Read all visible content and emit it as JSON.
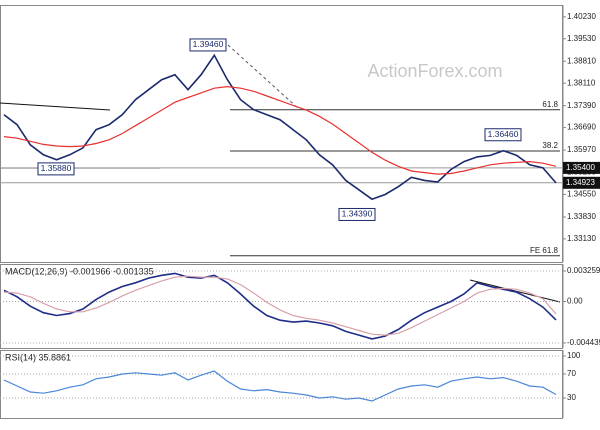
{
  "chart_data": [
    {
      "type": "line",
      "watermark": "ActionForex.com",
      "series": [
        {
          "color": "#1a2a6c",
          "values": [
            1.371,
            1.3678,
            1.3614,
            1.3582,
            1.3566,
            1.3582,
            1.3604,
            1.3662,
            1.3678,
            1.371,
            1.3758,
            1.379,
            1.3822,
            1.3838,
            1.379,
            1.3838,
            1.39,
            1.3822,
            1.3758,
            1.3726,
            1.371,
            1.3694,
            1.3662,
            1.363,
            1.3582,
            1.355,
            1.35,
            1.347,
            1.344,
            1.3455,
            1.348,
            1.351,
            1.35,
            1.3495,
            1.3535,
            1.356,
            1.3575,
            1.358,
            1.3595,
            1.358,
            1.355,
            1.354,
            1.3492
          ]
        },
        {
          "color": "#e8312f",
          "values": [
            1.364,
            1.3635,
            1.3625,
            1.3615,
            1.361,
            1.3608,
            1.361,
            1.3618,
            1.363,
            1.365,
            1.3675,
            1.37,
            1.3725,
            1.375,
            1.3765,
            1.378,
            1.3795,
            1.38,
            1.3795,
            1.3785,
            1.377,
            1.3755,
            1.374,
            1.3725,
            1.3705,
            1.368,
            1.365,
            1.362,
            1.359,
            1.3565,
            1.3545,
            1.353,
            1.3525,
            1.352,
            1.3522,
            1.353,
            1.354,
            1.355,
            1.3555,
            1.3558,
            1.356,
            1.3555,
            1.3545
          ]
        }
      ],
      "ylim": [
        1.3239,
        1.4061
      ],
      "yticks": [
        {
          "value": 1.4023,
          "label": "1.40230"
        },
        {
          "value": 1.3953,
          "label": "1.39530"
        },
        {
          "value": 1.3881,
          "label": "1.38810"
        },
        {
          "value": 1.3811,
          "label": "1.38110"
        },
        {
          "value": 1.3739,
          "label": "1.37390"
        },
        {
          "value": 1.3669,
          "label": "1.36690"
        },
        {
          "value": 1.3597,
          "label": "1.35970"
        },
        {
          "value": 1.3525,
          "label": "1.35250"
        },
        {
          "value": 1.3455,
          "label": "1.34550"
        },
        {
          "value": 1.3383,
          "label": "1.33830"
        },
        {
          "value": 1.3313,
          "label": "1.33130"
        }
      ],
      "price_tags": [
        {
          "value": 1.354,
          "label": "1.35400"
        },
        {
          "value": 1.34923,
          "label": "1.34923"
        }
      ],
      "levels": [
        {
          "value": 1.3726,
          "label": "61.8"
        },
        {
          "value": 1.3594,
          "label": "38.2"
        },
        {
          "value": 1.3259,
          "label": "FE 61.8"
        }
      ],
      "annotations": [
        {
          "value": 1.3946,
          "label": "1.39460"
        },
        {
          "value": 1.3588,
          "label": "1.35880"
        },
        {
          "value": 1.3646,
          "label": "1.36460"
        },
        {
          "value": 1.3439,
          "label": "1.34390"
        }
      ],
      "grid": false
    },
    {
      "type": "line",
      "title": "MACD(12,26,9) -0.001966 -0.001335",
      "series": [
        {
          "color": "#1f2d8a",
          "values": [
            0.0012,
            0.0005,
            -0.0005,
            -0.0012,
            -0.0015,
            -0.0013,
            -0.0008,
            0.0002,
            0.001,
            0.0016,
            0.002,
            0.0025,
            0.0028,
            0.003,
            0.0026,
            0.0025,
            0.0028,
            0.002,
            0.0008,
            -0.0005,
            -0.0015,
            -0.002,
            -0.0022,
            -0.0021,
            -0.0023,
            -0.0026,
            -0.0032,
            -0.0036,
            -0.004,
            -0.0037,
            -0.003,
            -0.002,
            -0.0012,
            -0.0006,
            0.0,
            0.0008,
            0.002,
            0.0016,
            0.0013,
            0.001,
            0.0003,
            -0.0006,
            -0.001966
          ]
        },
        {
          "color": "#d9a0a8",
          "values": [
            0.001,
            0.0009,
            0.0005,
            -0.0002,
            -0.0008,
            -0.0011,
            -0.0011,
            -0.0007,
            -0.0001,
            0.0006,
            0.0012,
            0.0017,
            0.0022,
            0.0026,
            0.0027,
            0.0026,
            0.0026,
            0.0024,
            0.0018,
            0.0009,
            -0.0001,
            -0.0009,
            -0.0015,
            -0.0018,
            -0.002,
            -0.0023,
            -0.0027,
            -0.0031,
            -0.0035,
            -0.0036,
            -0.0034,
            -0.0028,
            -0.0021,
            -0.0014,
            -0.0007,
            0.0,
            0.0009,
            0.0013,
            0.0014,
            0.0013,
            0.0009,
            0.0003,
            -0.001335
          ]
        }
      ],
      "ylim": [
        -0.004974,
        0.004007
      ],
      "yticks": [
        0.003259,
        {
          "value": 0,
          "label": "0.00"
        },
        -0.004439
      ],
      "grid": true
    },
    {
      "type": "line",
      "title": "RSI(14) 35.8861",
      "series": [
        {
          "color": "#4a86d8",
          "values": [
            60,
            50,
            40,
            38,
            42,
            48,
            52,
            62,
            65,
            70,
            72,
            70,
            68,
            72,
            60,
            68,
            75,
            58,
            45,
            42,
            44,
            40,
            38,
            35,
            30,
            32,
            28,
            30,
            25,
            35,
            45,
            50,
            52,
            48,
            58,
            62,
            65,
            62,
            64,
            58,
            50,
            48,
            35.8861
          ]
        }
      ],
      "ylim": [
        -3.3,
        110
      ],
      "yticks": [
        100,
        70,
        30
      ],
      "grid": true
    }
  ]
}
